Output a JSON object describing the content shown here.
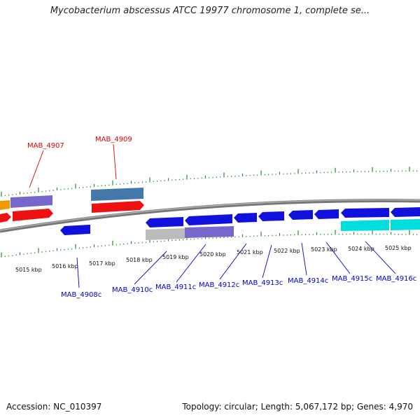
{
  "title": "Mycobacterium abscessus ATCC 19977 chromosome 1, complete se...",
  "accession": "Accession: NC_010397",
  "summary": "Topology: circular; Length: 5,067,172 bp; Genes: 4,970",
  "colors": {
    "tick": "#2a8a2a",
    "backbone": "#777777",
    "gene_red": "#ee1111",
    "gene_blue": "#1111dd",
    "gene_purple": "#7766cc",
    "gene_steel": "#4477aa",
    "gene_orange": "#ee9900",
    "gene_cyan": "#00dddd",
    "gene_grey": "#bbbbbb",
    "label_red": "#dd0000",
    "label_blue": "#0000cc"
  },
  "kbp_labels": [
    "5015 kbp",
    "5016 kbp",
    "5017 kbp",
    "5018 kbp",
    "5019 kbp",
    "5020 kbp",
    "5021 kbp",
    "5022 kbp",
    "5023 kbp",
    "5024 kbp",
    "5025 kbp"
  ],
  "gene_labels_top": [
    "MAB_4907",
    "MAB_4909"
  ],
  "gene_labels_bottom": [
    "MAB_4908c",
    "MAB_4910c",
    "MAB_4911c",
    "MAB_4912c",
    "MAB_4913c",
    "MAB_4914c",
    "MAB_4915c",
    "MAB_4916c"
  ]
}
